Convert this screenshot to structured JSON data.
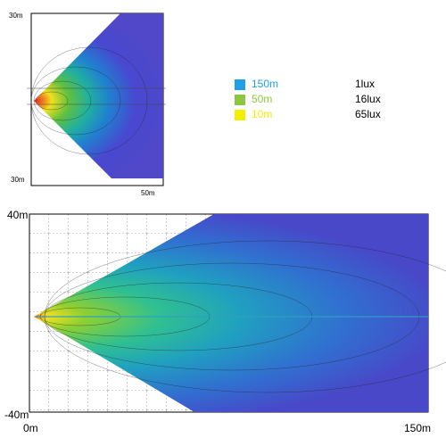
{
  "top_plot": {
    "y_top_label": "30m",
    "y_bottom_label": "30m",
    "x_label": "50m"
  },
  "legend": {
    "rows": [
      {
        "color": "#1ea0e6",
        "distance": "150m",
        "lux": "1lux"
      },
      {
        "color": "#8cc63f",
        "distance": "50m",
        "lux": "16lux"
      },
      {
        "color": "#f0f000",
        "distance": "10m",
        "lux": "65lux"
      }
    ]
  },
  "bottom_plot": {
    "y_top_label": "40m",
    "y_bottom_label": "-40m",
    "x_left_label": "0m",
    "x_right_label": "150m"
  }
}
